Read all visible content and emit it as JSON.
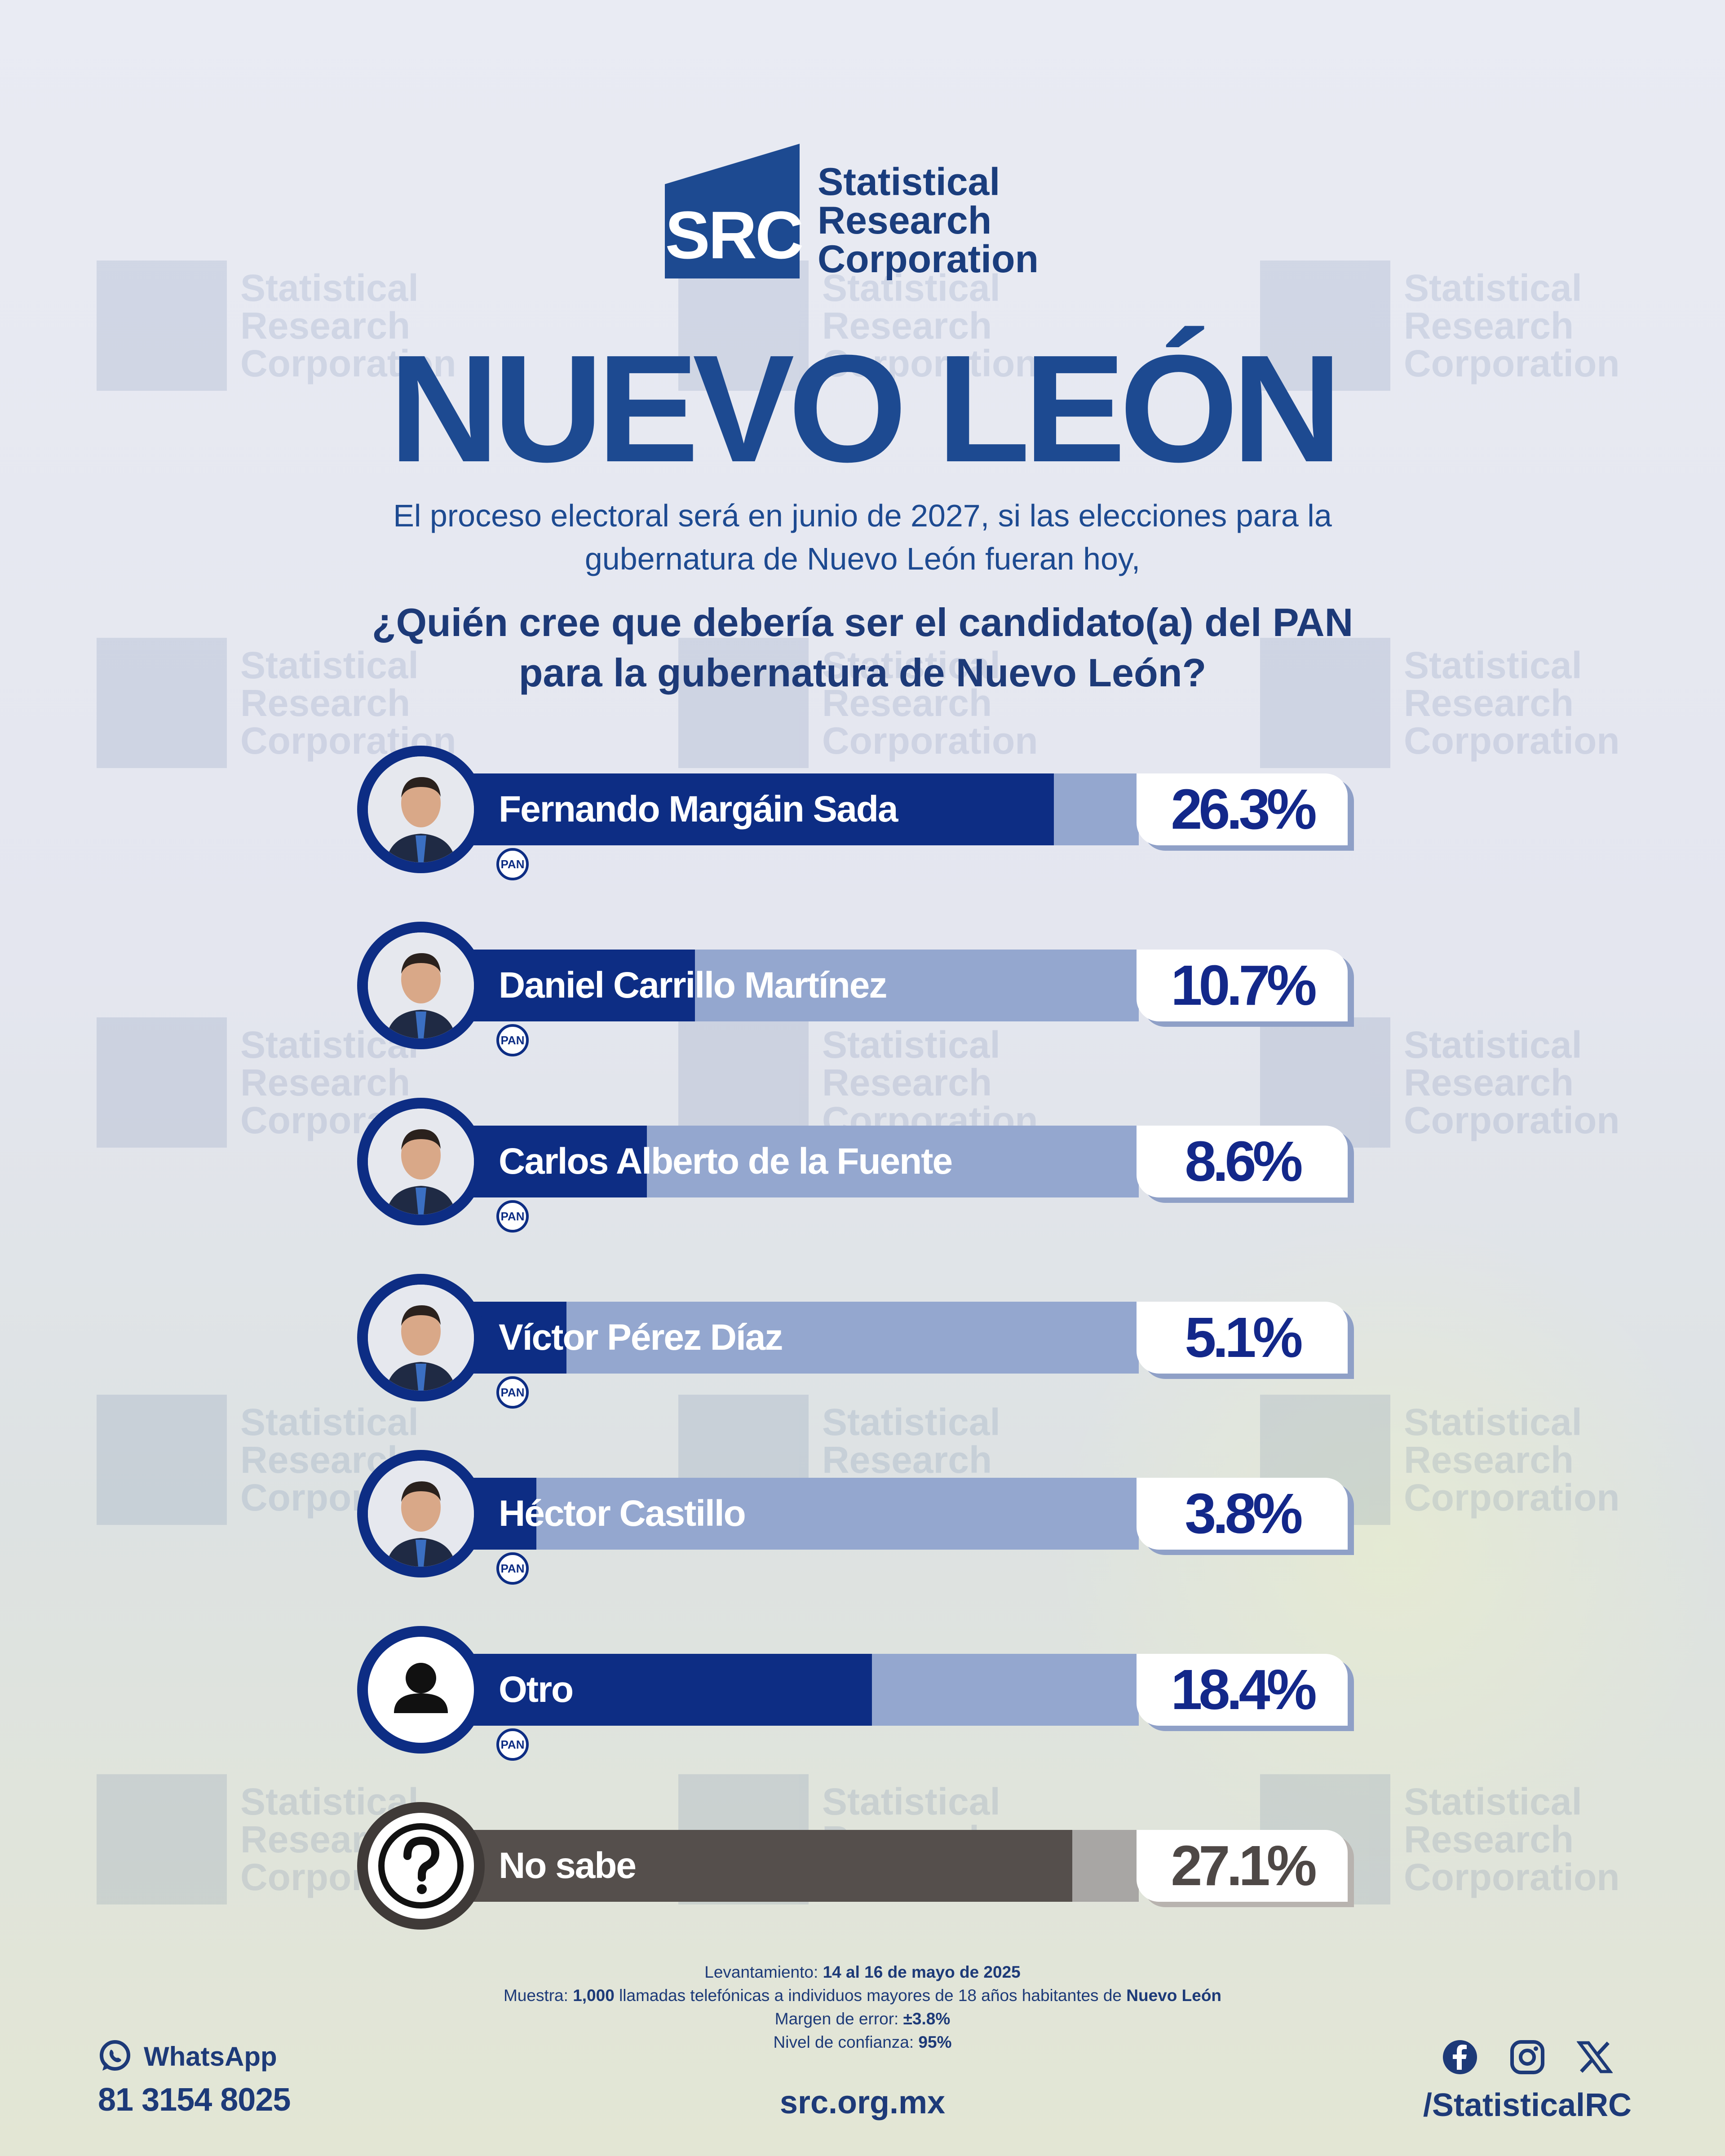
{
  "brand": {
    "logo_mark": "SRC",
    "name_line1": "Statistical",
    "name_line2": "Research",
    "name_line3": "Corporation"
  },
  "title": "NUEVO LEÓN",
  "intro_line1": "El proceso electoral será en junio de 2027, si las elecciones para la",
  "intro_line2": "gubernatura de Nuevo León fueran hoy,",
  "question_line1": "¿Quién cree que debería ser el candidato(a) del PAN",
  "question_line2": "para la gubernatura de Nuevo León?",
  "party_badge": "PAN",
  "colors": {
    "primary": "#0d2d84",
    "track": "#94a7cf",
    "no_sabe": "#554f4c",
    "title": "#1d4a91"
  },
  "chart_data": {
    "type": "bar",
    "orientation": "horizontal",
    "categories": [
      "Fernando Margáin Sada",
      "Daniel Carrillo Martínez",
      "Carlos Alberto de la Fuente",
      "Víctor Pérez Díaz",
      "Héctor Castillo",
      "Otro",
      "No sabe"
    ],
    "values": [
      26.3,
      10.7,
      8.6,
      5.1,
      3.8,
      18.4,
      27.1
    ],
    "value_labels": [
      "26.3%",
      "10.7%",
      "8.6%",
      "5.1%",
      "3.8%",
      "18.4%",
      "27.1%"
    ],
    "unit": "%",
    "xlim": [
      0,
      30
    ],
    "grid": false
  },
  "methodology": {
    "fieldwork_label": "Levantamiento:",
    "fieldwork_value": "14 al 16 de mayo de 2025",
    "sample_label": "Muestra:",
    "sample_count": "1,000",
    "sample_text": "llamadas telefónicas a individuos mayores de 18 años habitantes de",
    "sample_place": "Nuevo León",
    "margin_label": "Margen de error:",
    "margin_value": "±3.8%",
    "confidence_label": "Nivel de confianza:",
    "confidence_value": "95%"
  },
  "footer": {
    "whatsapp_label": "WhatsApp",
    "whatsapp_number": "81 3154 8025",
    "website": "src.org.mx",
    "social_handle": "/StatisticalRC",
    "icons": [
      "whatsapp-icon",
      "facebook-icon",
      "instagram-icon",
      "x-icon"
    ]
  }
}
